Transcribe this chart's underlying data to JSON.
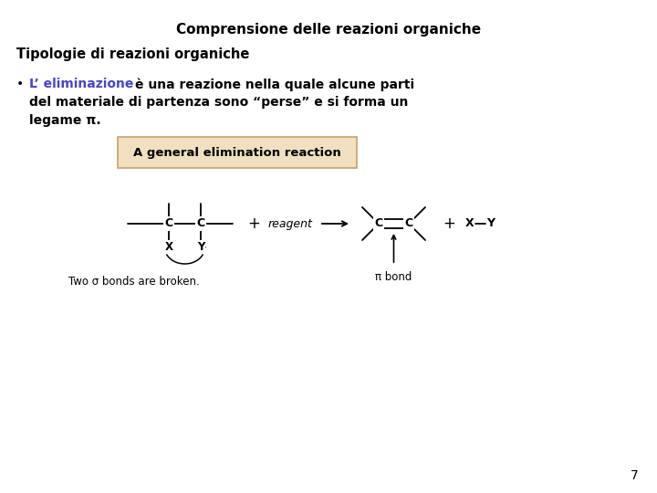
{
  "title": "Comprensione delle reazioni organiche",
  "subtitle": "Tipologie di reazioni organiche",
  "bullet_colored": "L’ eliminazione",
  "bullet_colored_color": "#4444cc",
  "bullet_line1_rest": " è una reazione nella quale alcune parti",
  "bullet_line2": "del materiale di partenza sono “perse” e si forma un",
  "bullet_line3": "legame π.",
  "box_label": "A general elimination reaction",
  "box_facecolor": "#f0e0c0",
  "box_edgecolor": "#c8a06e",
  "label_two_sigma": "Two σ bonds are broken.",
  "label_pi_bond": "π bond",
  "page_number": "7",
  "bg_color": "#ffffff",
  "text_color": "#000000"
}
